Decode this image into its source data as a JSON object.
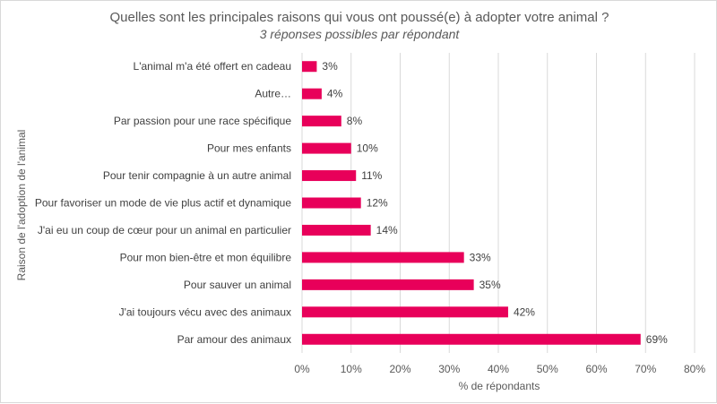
{
  "chart_data": {
    "type": "bar",
    "orientation": "horizontal",
    "title": "Quelles sont les principales raisons qui vous ont poussé(e) à adopter votre animal ?",
    "subtitle": "3 réponses possibles par répondant",
    "xlabel": "% de répondants",
    "ylabel": "Raison de l'adoption de l'animal",
    "categories": [
      "L'animal m'a été offert en cadeau",
      "Autre…",
      "Par passion pour une race spécifique",
      "Pour mes enfants",
      "Pour tenir compagnie à un autre animal",
      "Pour favoriser un mode de vie plus actif et dynamique",
      "J'ai eu un coup de cœur pour un animal en particulier",
      "Pour mon bien-être et mon équilibre",
      "Pour sauver un animal",
      "J'ai toujours vécu avec des animaux",
      "Par amour des animaux"
    ],
    "values": [
      3,
      4,
      8,
      10,
      11,
      12,
      14,
      33,
      35,
      42,
      69
    ],
    "value_labels": [
      "3%",
      "4%",
      "8%",
      "10%",
      "11%",
      "12%",
      "14%",
      "33%",
      "35%",
      "42%",
      "69%"
    ],
    "xlim": [
      0,
      80
    ],
    "x_ticks": [
      0,
      10,
      20,
      30,
      40,
      50,
      60,
      70,
      80
    ],
    "x_tick_labels": [
      "0%",
      "10%",
      "20%",
      "30%",
      "40%",
      "50%",
      "60%",
      "70%",
      "80%"
    ],
    "grid": true,
    "legend": "none",
    "bar_color": "#e8005a"
  }
}
